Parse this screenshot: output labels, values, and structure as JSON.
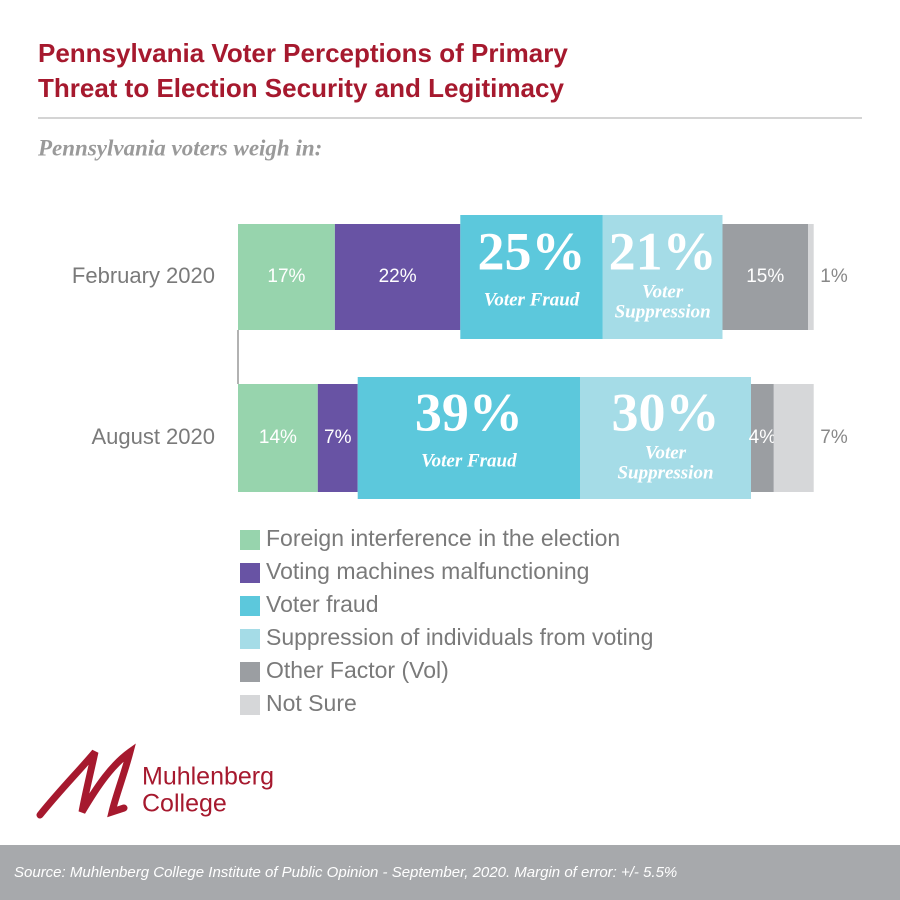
{
  "title": "Pennsylvania Voter Perceptions of Primary\nThreat to Election Security and Legitimacy",
  "subtitle": "Pennsylvania voters weigh in:",
  "chart_data": {
    "type": "stacked-bar",
    "categories": [
      "February 2020",
      "August 2020"
    ],
    "series": [
      {
        "name": "Foreign interference in the election",
        "color": "#97d4ad",
        "values": [
          17,
          14
        ],
        "value_labels": [
          "17%",
          "14%"
        ]
      },
      {
        "name": "Voting machines malfunctioning",
        "color": "#6853a4",
        "values": [
          22,
          7
        ],
        "value_labels": [
          "22%",
          "7%"
        ]
      },
      {
        "name": "Voter fraud",
        "color": "#5cc8dc",
        "values": [
          25,
          39
        ],
        "value_labels": [
          "25%",
          "39%"
        ],
        "bar_label": [
          "Voter Fraud"
        ]
      },
      {
        "name": "Suppression of individuals from voting",
        "color": "#a5dce7",
        "values": [
          21,
          30
        ],
        "value_labels": [
          "21%",
          "30%"
        ],
        "bar_label": [
          "Voter",
          "Suppression"
        ]
      },
      {
        "name": "Other Factor (Vol)",
        "color": "#9b9ea2",
        "values": [
          15,
          4
        ],
        "value_labels": [
          "15%",
          "4%"
        ]
      },
      {
        "name": "Not Sure",
        "color": "#d6d7d9",
        "values": [
          1,
          7
        ],
        "value_labels": [
          "1%",
          "7%"
        ]
      }
    ]
  },
  "logo_lines": [
    "Muhlenberg",
    "College"
  ],
  "source": "Source: Muhlenberg College Institute of Public Opinion - September, 2020. Margin of error: +/- 5.5%"
}
